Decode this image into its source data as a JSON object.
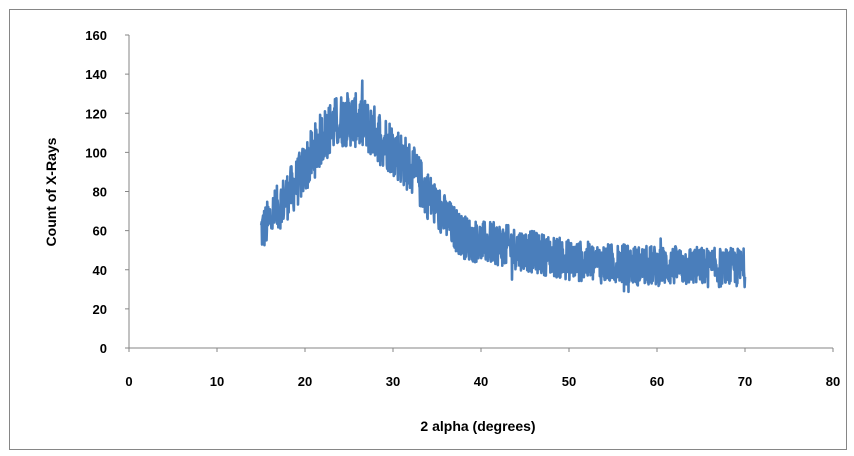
{
  "chart_data": {
    "type": "line",
    "title": "",
    "xlabel": "2 alpha (degrees)",
    "ylabel": "Count of X-Rays",
    "xlim": [
      0,
      80
    ],
    "ylim": [
      0,
      160
    ],
    "x_ticks": [
      0,
      10,
      20,
      30,
      40,
      50,
      60,
      70,
      80
    ],
    "y_ticks": [
      0,
      20,
      40,
      60,
      80,
      100,
      120,
      140,
      160
    ],
    "grid": false,
    "legend": "none",
    "series_color": "#4a7ebb",
    "series": [
      {
        "x": [
          15,
          15.5,
          16,
          17,
          18,
          19,
          20,
          21,
          22,
          23,
          24,
          25,
          26,
          27,
          28,
          29,
          30,
          31,
          32,
          33,
          34,
          35,
          36,
          37,
          38,
          39,
          40,
          42,
          44,
          46,
          48,
          50,
          52,
          54,
          56,
          58,
          60,
          62,
          64,
          66,
          68,
          70
        ],
        "y": [
          60,
          62,
          66,
          72,
          78,
          84,
          92,
          100,
          108,
          113,
          116,
          117,
          116,
          113,
          110,
          106,
          102,
          97,
          92,
          85,
          78,
          72,
          66,
          61,
          57,
          55,
          54,
          53,
          51,
          49,
          47,
          45,
          44,
          43,
          43,
          42,
          42,
          42,
          42,
          41,
          41,
          41
        ],
        "noise_amplitude": 14
      }
    ]
  }
}
